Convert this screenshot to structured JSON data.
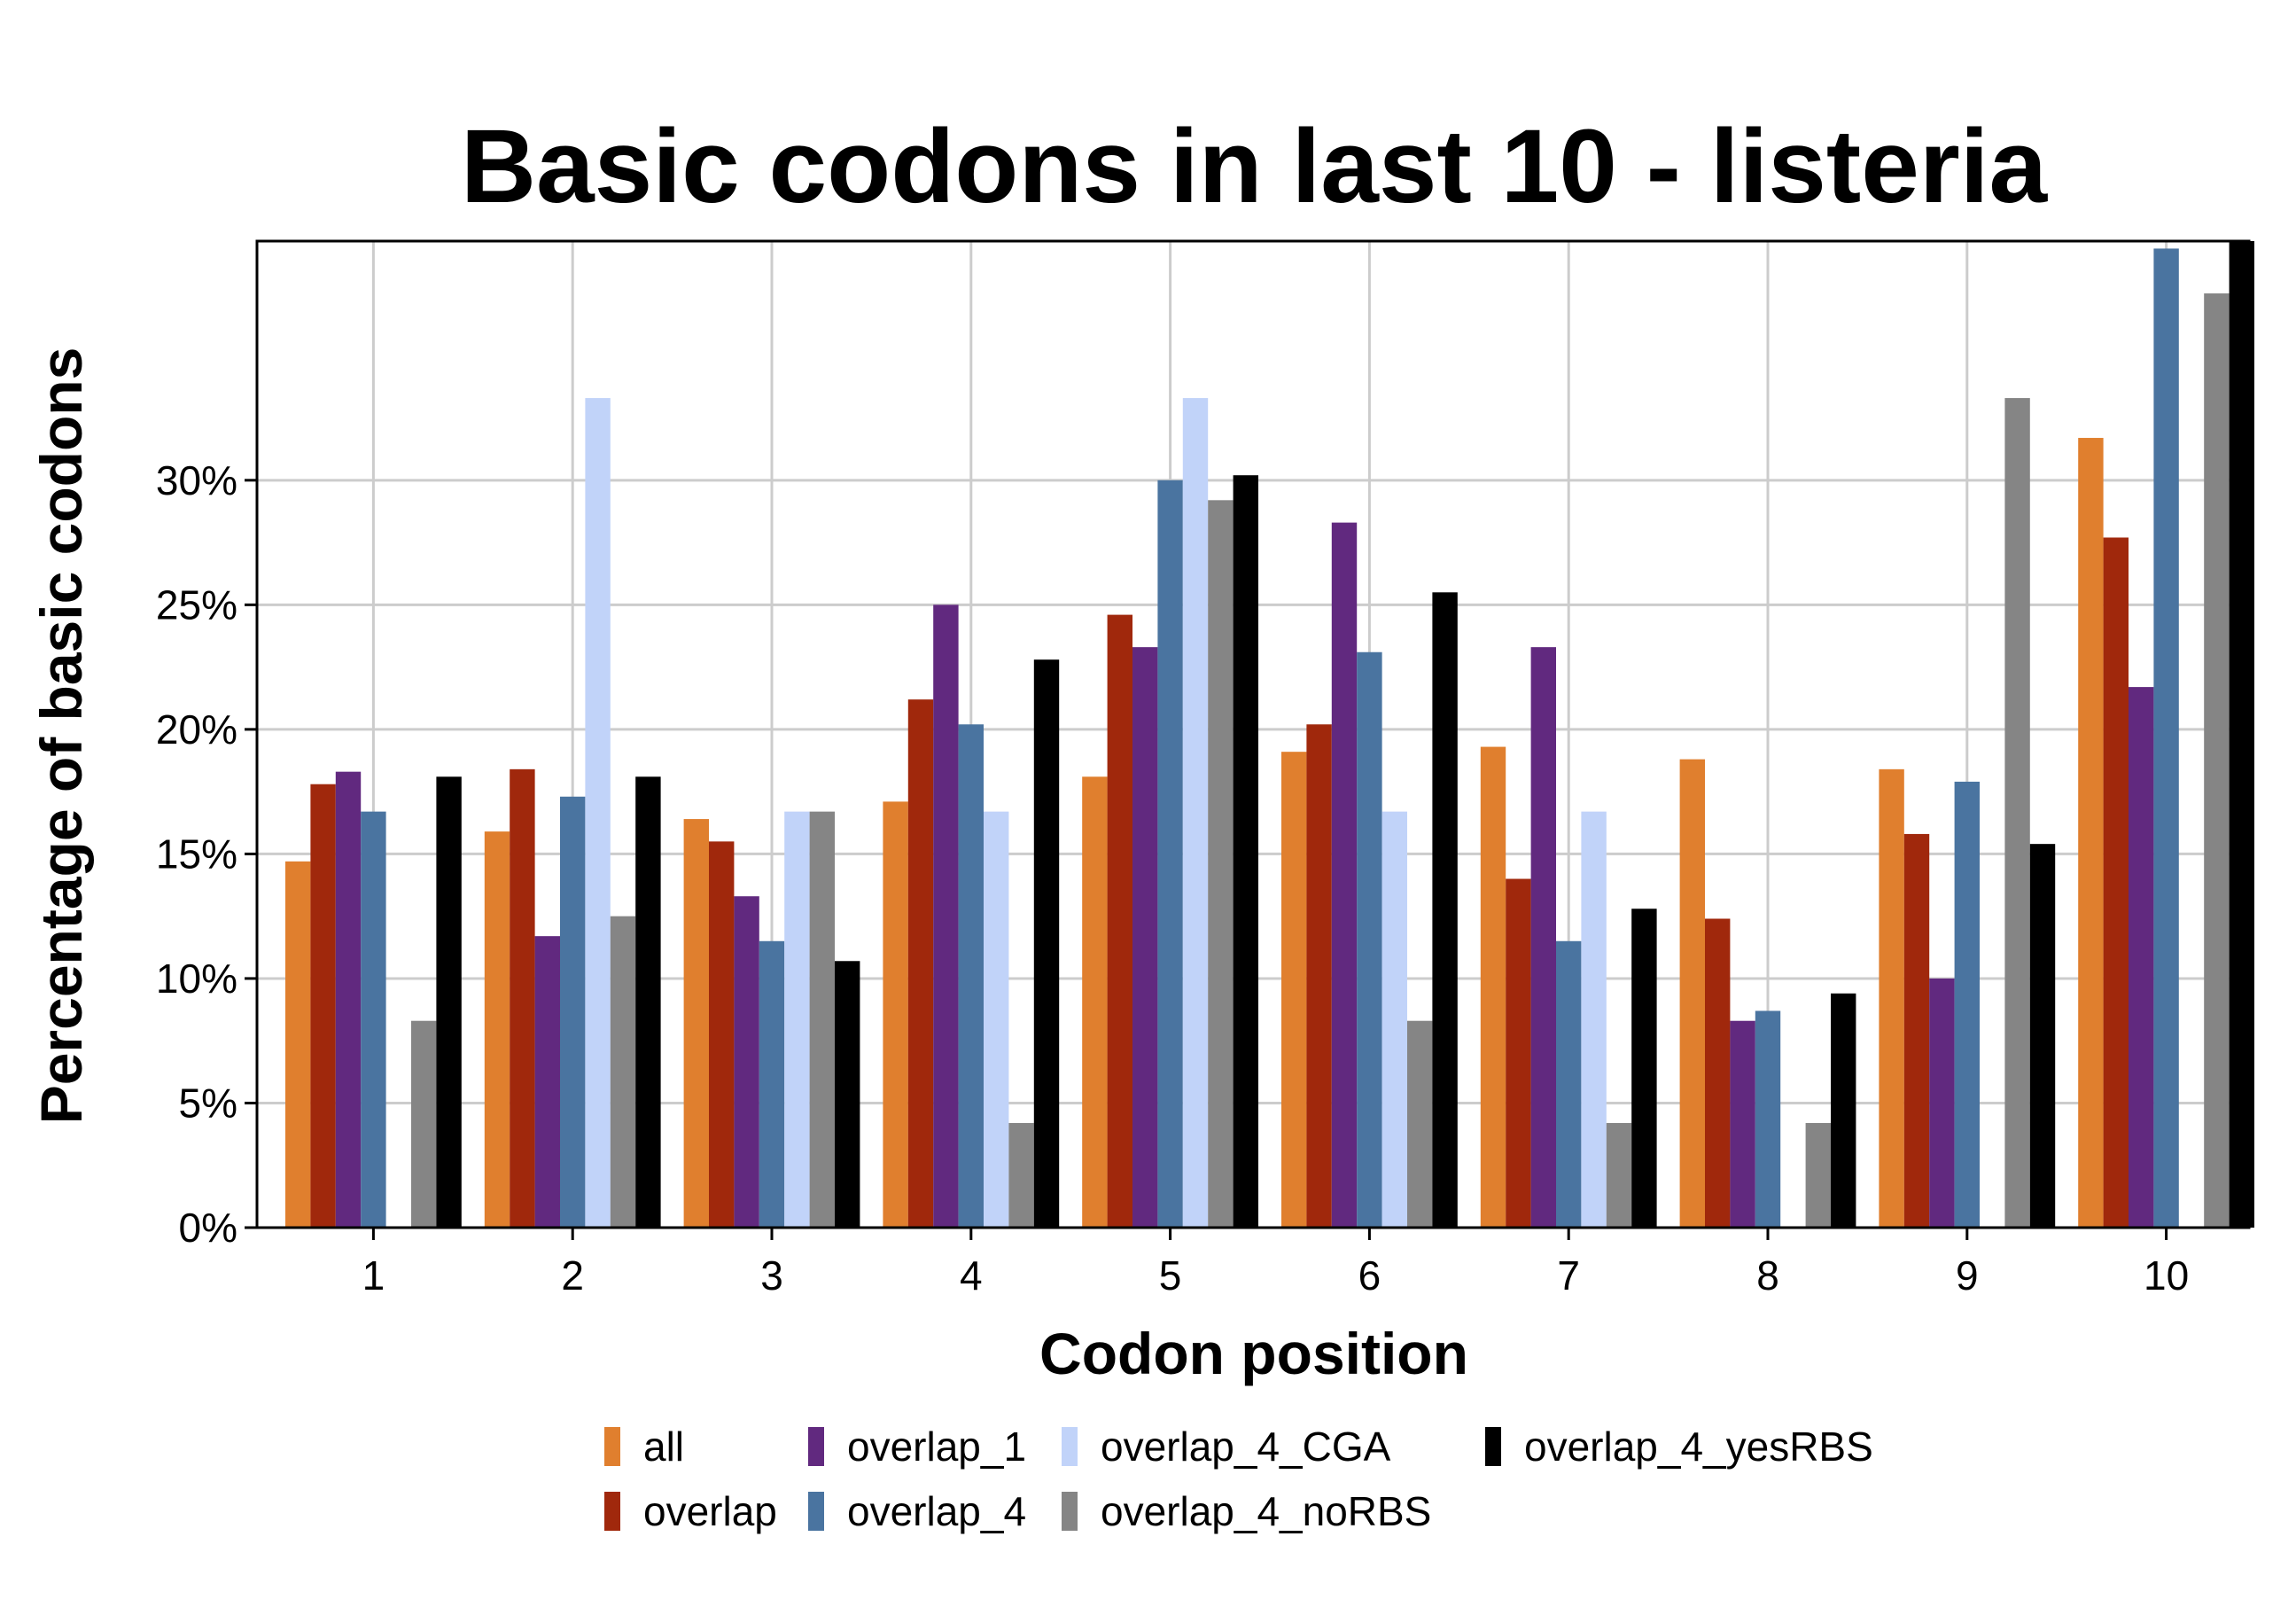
{
  "chart_data": {
    "type": "bar",
    "title": "Basic codons in last 10 - listeria",
    "xlabel": "Codon position",
    "ylabel": "Percentage of basic codons",
    "categories": [
      "1",
      "2",
      "3",
      "4",
      "5",
      "6",
      "7",
      "8",
      "9",
      "10"
    ],
    "ylim": [
      0,
      39.6
    ],
    "yticks": [
      0,
      5,
      10,
      15,
      20,
      25,
      30
    ],
    "ytick_labels": [
      "0%",
      "5%",
      "10%",
      "15%",
      "20%",
      "25%",
      "30%"
    ],
    "grid": true,
    "legend_position": "bottom",
    "series": [
      {
        "name": "all",
        "color": "#e07f2e",
        "values": [
          14.7,
          15.9,
          16.4,
          17.1,
          18.1,
          19.1,
          19.3,
          18.8,
          18.4,
          31.7
        ]
      },
      {
        "name": "overlap",
        "color": "#a0280c",
        "values": [
          17.8,
          18.4,
          15.5,
          21.2,
          24.6,
          20.2,
          14.0,
          12.4,
          15.8,
          27.7
        ]
      },
      {
        "name": "overlap_1",
        "color": "#61297f",
        "values": [
          18.3,
          11.7,
          13.3,
          25.0,
          23.3,
          28.3,
          23.3,
          8.3,
          10.0,
          21.7
        ]
      },
      {
        "name": "overlap_4",
        "color": "#4a74a0",
        "values": [
          16.7,
          17.3,
          11.5,
          20.2,
          30.0,
          23.1,
          11.5,
          8.7,
          17.9,
          39.3
        ]
      },
      {
        "name": "overlap_4_CGA",
        "color": "#c1d3f9",
        "values": [
          0,
          33.3,
          16.7,
          16.7,
          33.3,
          16.7,
          16.7,
          0,
          0,
          0
        ]
      },
      {
        "name": "overlap_4_noRBS",
        "color": "#858585",
        "values": [
          8.3,
          12.5,
          16.7,
          4.2,
          29.2,
          8.3,
          4.2,
          4.2,
          33.3,
          37.5
        ]
      },
      {
        "name": "overlap_4_yesRBS",
        "color": "#000000",
        "values": [
          18.1,
          18.1,
          10.7,
          22.8,
          30.2,
          25.5,
          12.8,
          9.4,
          15.4,
          39.6
        ]
      }
    ]
  }
}
